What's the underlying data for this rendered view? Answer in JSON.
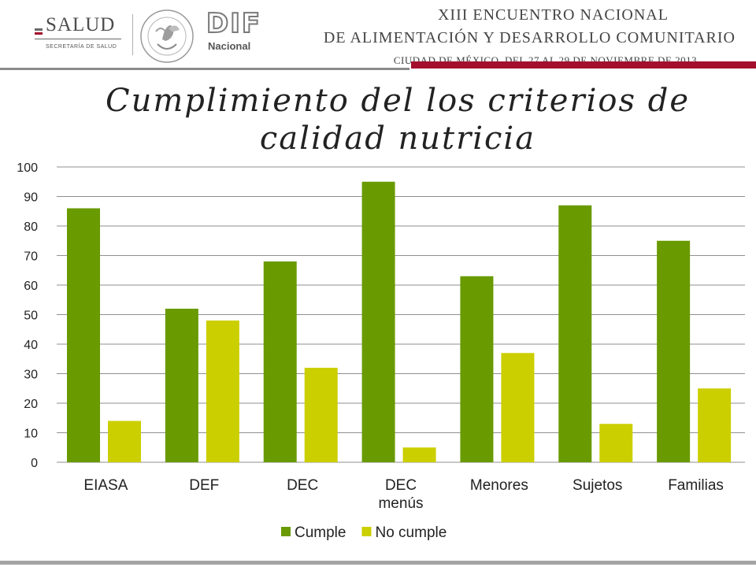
{
  "header": {
    "salud": {
      "name": "SALUD",
      "subtitle": "SECRETARÍA DE SALUD"
    },
    "seal_text": "ESTADOS UNIDOS MEXICANOS",
    "dif": {
      "name": "DIF",
      "subtitle": "Nacional"
    },
    "event": {
      "line1": "XIII ENCUENTRO NACIONAL",
      "line2": "DE ALIMENTACIÓN Y DESARROLLO COMUNITARIO",
      "line3": "CIUDAD DE MÉXICO, DEL 27 AL 29 DE NOVIEMBRE DE 2013"
    },
    "colors": {
      "gray_rule": "#8a8a8a",
      "red_rule": "#a30f2d"
    }
  },
  "title": {
    "line1": "Cumplimiento del los criterios de",
    "line2": "calidad nutricia"
  },
  "chart_data": {
    "type": "bar",
    "categories": [
      [
        "EIASA"
      ],
      [
        "DEF"
      ],
      [
        "DEC"
      ],
      [
        "DEC",
        "menús"
      ],
      [
        "Menores"
      ],
      [
        "Sujetos"
      ],
      [
        "Familias"
      ]
    ],
    "series": [
      {
        "name": "Cumple",
        "color": "#699a00",
        "values": [
          86,
          52,
          68,
          95,
          63,
          87,
          75
        ]
      },
      {
        "name": "No cumple",
        "color": "#cbcf00",
        "values": [
          14,
          48,
          32,
          5,
          37,
          13,
          25
        ]
      }
    ],
    "ylim": [
      0,
      100
    ],
    "yticks": [
      0,
      10,
      20,
      30,
      40,
      50,
      60,
      70,
      80,
      90,
      100
    ],
    "grid": true,
    "legend_position": "bottom"
  }
}
